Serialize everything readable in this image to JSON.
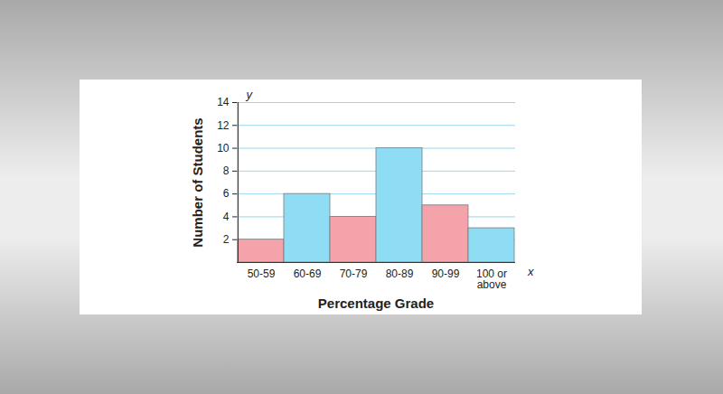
{
  "chart_data": {
    "type": "bar",
    "x_label": "Percentage Grade",
    "y_label": "Number of Students",
    "categories": [
      "50-59",
      "60-69",
      "70-79",
      "80-89",
      "90-99",
      "100 or above"
    ],
    "values": [
      2,
      6,
      4,
      10,
      5,
      3
    ],
    "colors": [
      "#f4a3aa",
      "#8fdcf5",
      "#f4a3aa",
      "#8fdcf5",
      "#f4a3aa",
      "#8fdcf5"
    ],
    "ylim": [
      0,
      14
    ],
    "yticks": [
      2,
      4,
      6,
      8,
      10,
      12,
      14
    ],
    "grid": true,
    "annotations": [
      "y",
      "x"
    ]
  }
}
